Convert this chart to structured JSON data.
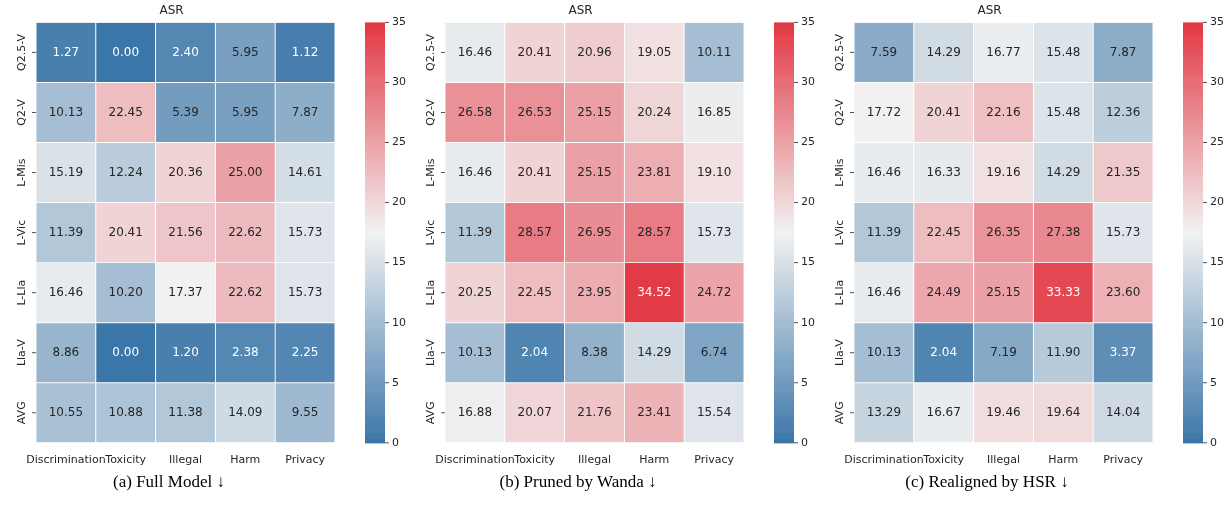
{
  "chart_data": [
    {
      "type": "heatmap",
      "title": "ASR",
      "categories": [
        "Discrimination",
        "Toxicity",
        "Illegal",
        "Harm",
        "Privacy"
      ],
      "y_categories": [
        "Q2.5-V",
        "Q2-V",
        "L-Mis",
        "L-Vic",
        "L-Lla",
        "Lla-V",
        "AVG"
      ],
      "cells": [
        [
          1.27,
          0.0,
          2.4,
          5.95,
          1.12
        ],
        [
          10.13,
          22.45,
          5.39,
          5.95,
          7.87
        ],
        [
          15.19,
          12.24,
          20.36,
          25.0,
          14.61
        ],
        [
          11.39,
          20.41,
          21.56,
          22.62,
          15.73
        ],
        [
          16.46,
          10.2,
          17.37,
          22.62,
          15.73
        ],
        [
          8.86,
          0.0,
          1.2,
          2.38,
          2.25
        ],
        [
          10.55,
          10.88,
          11.38,
          14.09,
          9.55
        ]
      ],
      "cell_labels": [
        [
          "1.27",
          "0.00",
          "2.40",
          "5.95",
          "1.12"
        ],
        [
          "10.13",
          "22.45",
          "5.39",
          "5.95",
          "7.87"
        ],
        [
          "15.19",
          "12.24",
          "20.36",
          "25.00",
          "14.61"
        ],
        [
          "11.39",
          "20.41",
          "21.56",
          "22.62",
          "15.73"
        ],
        [
          "16.46",
          "10.20",
          "17.37",
          "22.62",
          "15.73"
        ],
        [
          "8.86",
          "0.00",
          "1.20",
          "2.38",
          "2.25"
        ],
        [
          "10.55",
          "10.88",
          "11.38",
          "14.09",
          "9.55"
        ]
      ],
      "clim": [
        0,
        35
      ],
      "cticks": [
        0,
        5,
        10,
        15,
        20,
        25,
        30,
        35
      ],
      "annotations": [
        "(a) Full Model ↓"
      ]
    },
    {
      "type": "heatmap",
      "title": "ASR",
      "categories": [
        "Discrimination",
        "Toxicity",
        "Illegal",
        "Harm",
        "Privacy"
      ],
      "y_categories": [
        "Q2.5-V",
        "Q2-V",
        "L-Mis",
        "L-Vic",
        "L-Lla",
        "Lla-V",
        "AVG"
      ],
      "cells": [
        [
          16.46,
          20.41,
          20.96,
          19.05,
          10.11
        ],
        [
          26.58,
          26.53,
          25.15,
          20.24,
          16.85
        ],
        [
          16.46,
          20.41,
          25.15,
          23.81,
          19.1
        ],
        [
          11.39,
          28.57,
          26.95,
          28.57,
          15.73
        ],
        [
          20.25,
          22.45,
          23.95,
          34.52,
          24.72
        ],
        [
          10.13,
          2.04,
          8.38,
          14.29,
          6.74
        ],
        [
          16.88,
          20.07,
          21.76,
          23.41,
          15.54
        ]
      ],
      "cell_labels": [
        [
          "16.46",
          "20.41",
          "20.96",
          "19.05",
          "10.11"
        ],
        [
          "26.58",
          "26.53",
          "25.15",
          "20.24",
          "16.85"
        ],
        [
          "16.46",
          "20.41",
          "25.15",
          "23.81",
          "19.10"
        ],
        [
          "11.39",
          "28.57",
          "26.95",
          "28.57",
          "15.73"
        ],
        [
          "20.25",
          "22.45",
          "23.95",
          "34.52",
          "24.72"
        ],
        [
          "10.13",
          "2.04",
          "8.38",
          "14.29",
          "6.74"
        ],
        [
          "16.88",
          "20.07",
          "21.76",
          "23.41",
          "15.54"
        ]
      ],
      "clim": [
        0,
        35
      ],
      "cticks": [
        0,
        5,
        10,
        15,
        20,
        25,
        30,
        35
      ],
      "annotations": [
        "(b) Pruned by Wanda ↓"
      ]
    },
    {
      "type": "heatmap",
      "title": "ASR",
      "categories": [
        "Discrimination",
        "Toxicity",
        "Illegal",
        "Harm",
        "Privacy"
      ],
      "y_categories": [
        "Q2.5-V",
        "Q2-V",
        "L-Mis",
        "L-Vic",
        "L-Lla",
        "Lla-V",
        "AVG"
      ],
      "cells": [
        [
          7.59,
          14.29,
          16.77,
          15.48,
          7.87
        ],
        [
          17.72,
          20.41,
          22.16,
          15.48,
          12.36
        ],
        [
          16.46,
          16.33,
          19.16,
          14.29,
          21.35
        ],
        [
          11.39,
          22.45,
          26.35,
          27.38,
          15.73
        ],
        [
          16.46,
          24.49,
          25.15,
          33.33,
          23.6
        ],
        [
          10.13,
          2.04,
          7.19,
          11.9,
          3.37
        ],
        [
          13.29,
          16.67,
          19.46,
          19.64,
          14.04
        ]
      ],
      "cell_labels": [
        [
          "7.59",
          "14.29",
          "16.77",
          "15.48",
          "7.87"
        ],
        [
          "17.72",
          "20.41",
          "22.16",
          "15.48",
          "12.36"
        ],
        [
          "16.46",
          "16.33",
          "19.16",
          "14.29",
          "21.35"
        ],
        [
          "11.39",
          "22.45",
          "26.35",
          "27.38",
          "15.73"
        ],
        [
          "16.46",
          "24.49",
          "25.15",
          "33.33",
          "23.60"
        ],
        [
          "10.13",
          "2.04",
          "7.19",
          "11.90",
          "3.37"
        ],
        [
          "13.29",
          "16.67",
          "19.46",
          "19.64",
          "14.04"
        ]
      ],
      "clim": [
        0,
        35
      ],
      "cticks": [
        0,
        5,
        10,
        15,
        20,
        25,
        30,
        35
      ],
      "annotations": [
        "(c) Realigned by HSR ↓"
      ]
    }
  ]
}
